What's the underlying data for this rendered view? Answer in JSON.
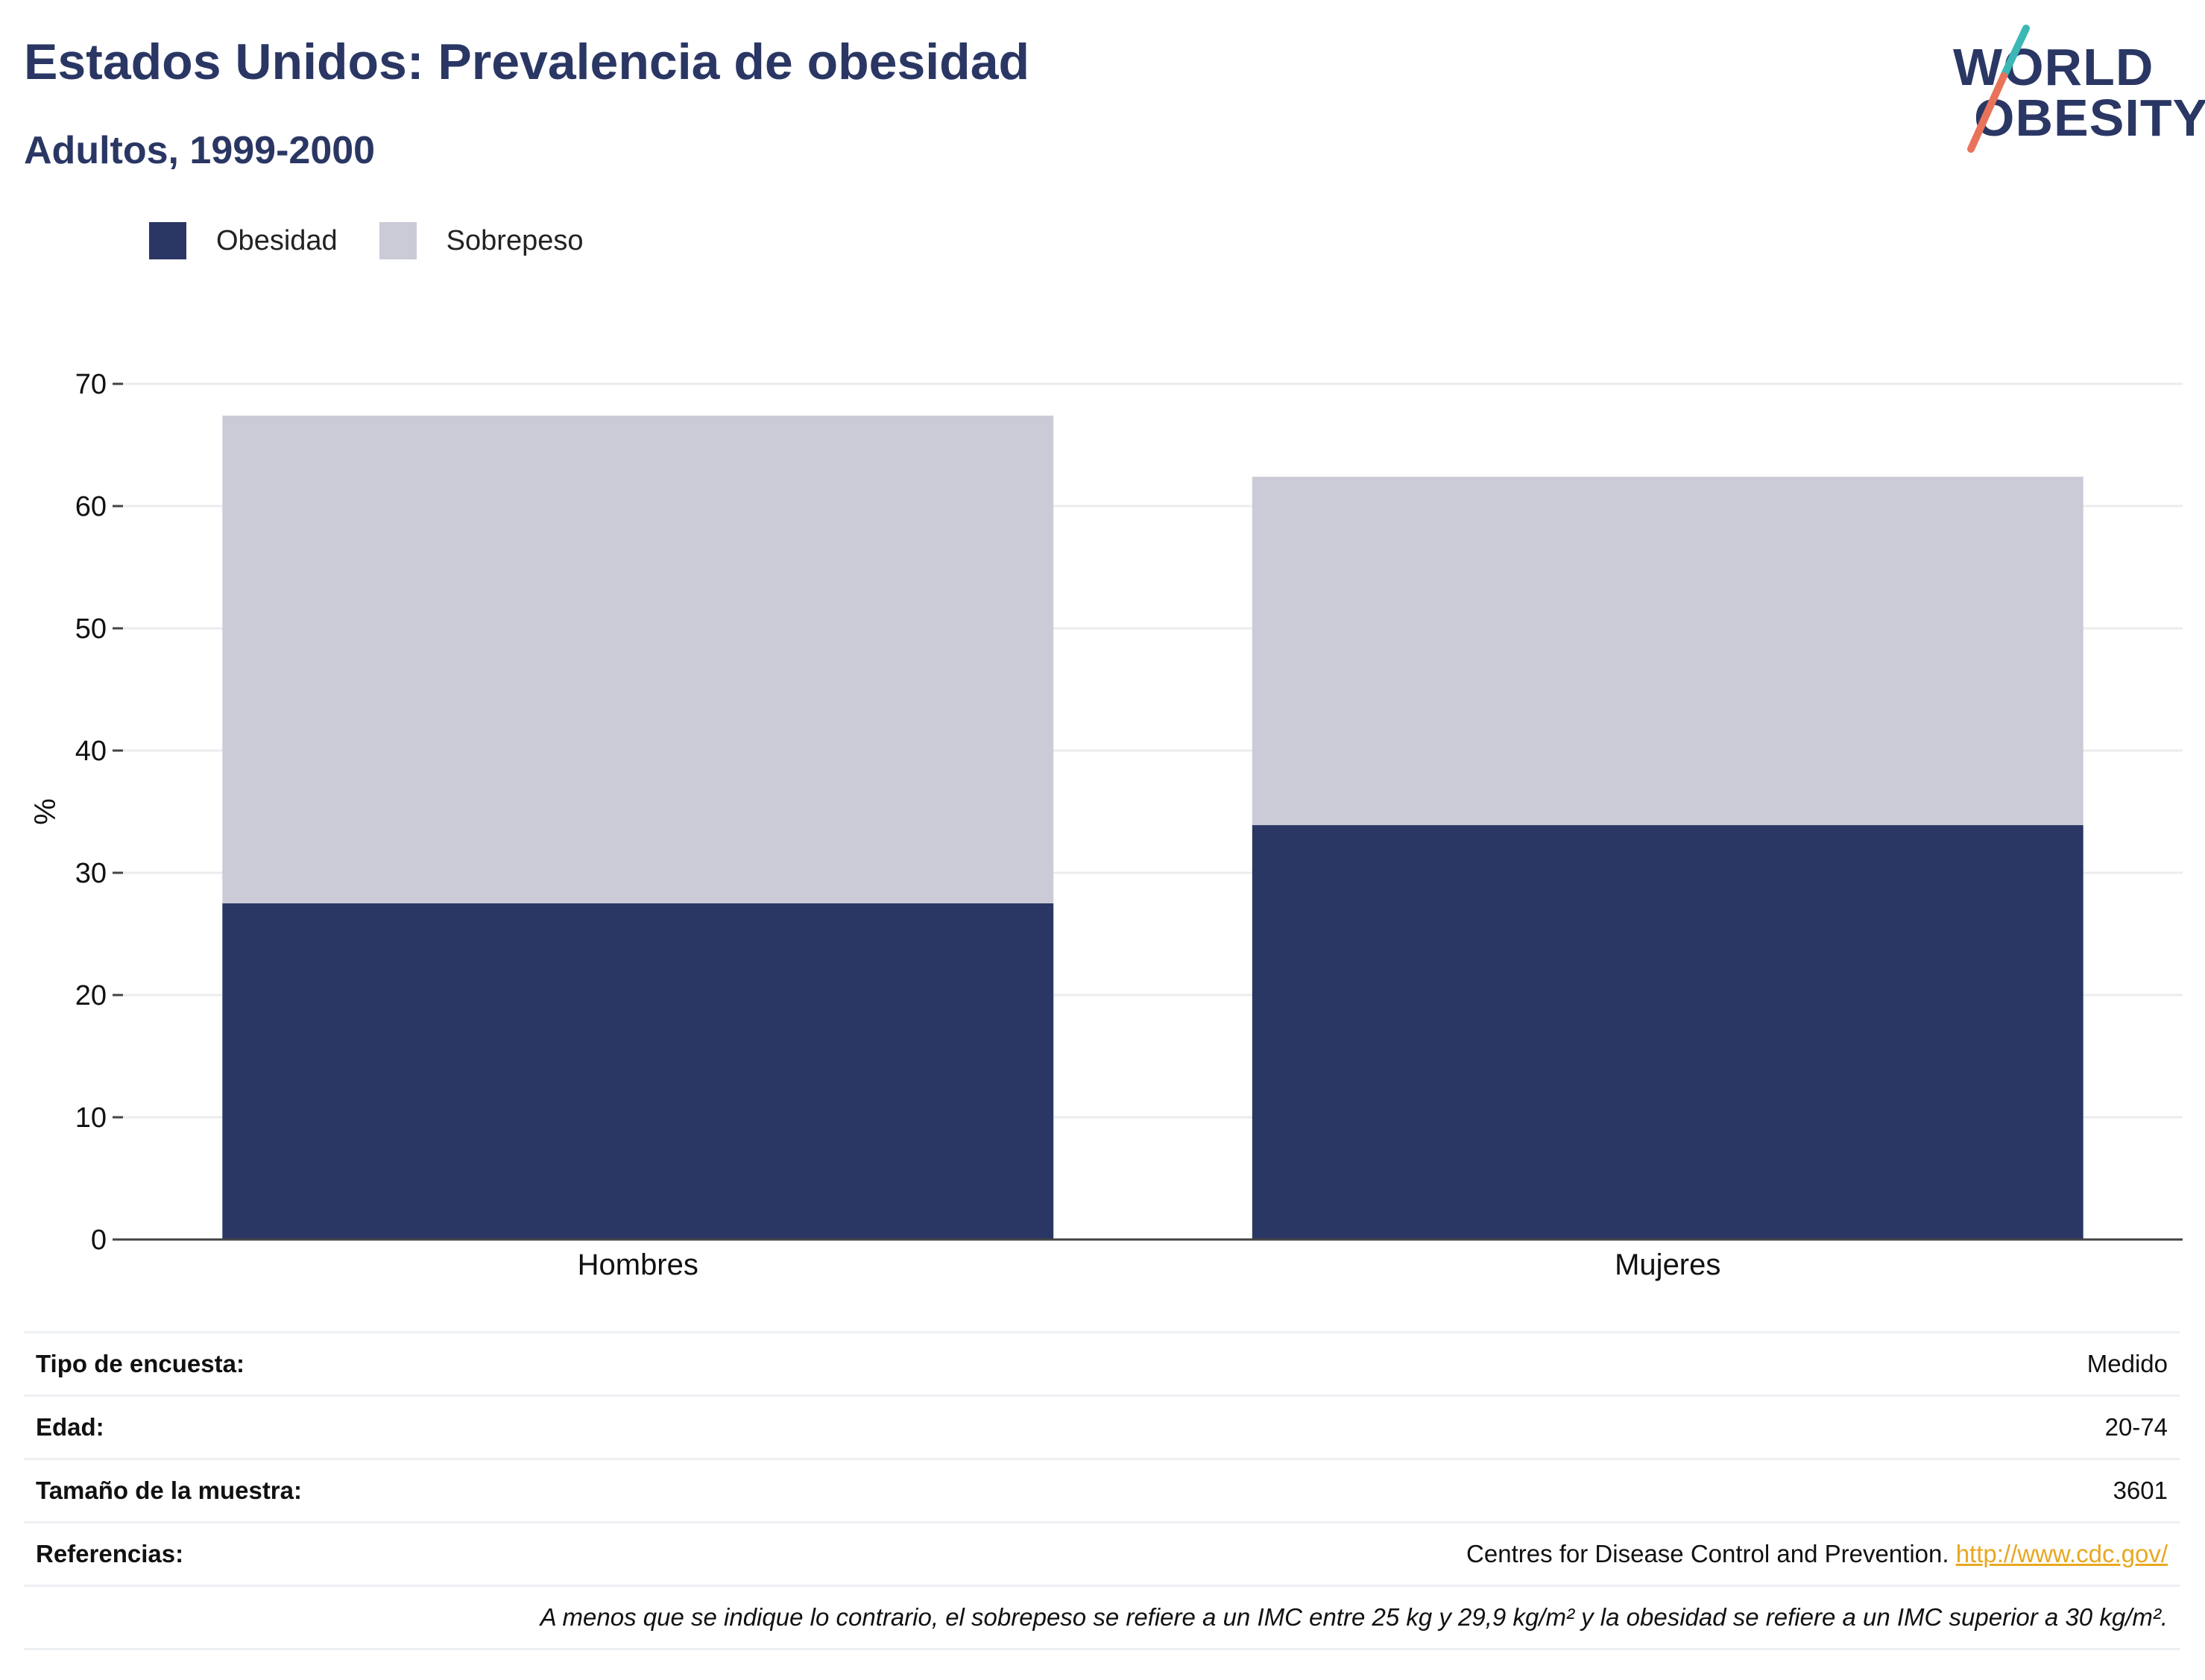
{
  "header": {
    "title": "Estados Unidos: Prevalencia de obesidad",
    "subtitle": "Adultos, 1999-2000"
  },
  "logo": {
    "line1": "WORLD",
    "line2": "OBESITY"
  },
  "colors": {
    "obesity": "#2a3764",
    "overweight": "#cacbd7",
    "accent_teal": "#3bb8b4",
    "accent_coral": "#e8735a",
    "link": "#e8a820"
  },
  "chart_data": {
    "type": "bar",
    "stacked": true,
    "categories": [
      "Hombres",
      "Mujeres"
    ],
    "series": [
      {
        "name": "Obesidad",
        "values": [
          27.5,
          33.9
        ]
      },
      {
        "name": "Sobrepeso",
        "values": [
          39.9,
          28.5
        ]
      }
    ],
    "ylabel": "%",
    "ylim": [
      0,
      70
    ],
    "yticks": [
      0,
      10,
      20,
      30,
      40,
      50,
      60,
      70
    ],
    "grid": true,
    "legend": "top-left"
  },
  "info": {
    "survey_label": "Tipo de encuesta:",
    "survey_value": "Medido",
    "age_label": "Edad:",
    "age_value": "20-74",
    "sample_label": "Tamaño de la muestra:",
    "sample_value": "3601",
    "ref_label": "Referencias:",
    "ref_text": "Centres for Disease Control and Prevention.",
    "ref_link": "http://www.cdc.gov/",
    "note": "A menos que se indique lo contrario, el sobrepeso se refiere a un IMC entre 25 kg y 29,9 kg/m² y la obesidad se refiere a un IMC superior a 30 kg/m²."
  }
}
